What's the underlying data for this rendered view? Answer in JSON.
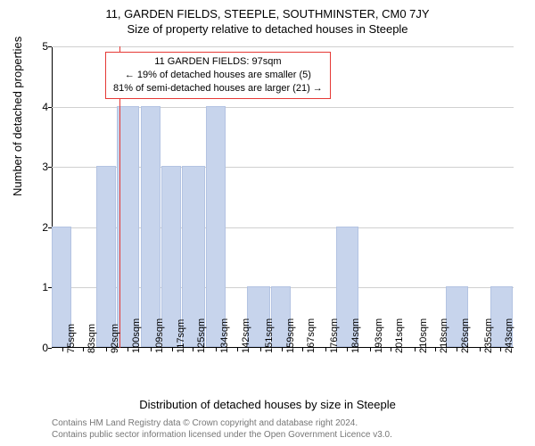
{
  "title_line1": "11, GARDEN FIELDS, STEEPLE, SOUTHMINSTER, CM0 7JY",
  "title_line2": "Size of property relative to detached houses in Steeple",
  "ylabel": "Number of detached properties",
  "xlabel": "Distribution of detached houses by size in Steeple",
  "annotation": {
    "line1": "11 GARDEN FIELDS: 97sqm",
    "line2": "← 19% of detached houses are smaller (5)",
    "line3": "81% of semi-detached houses are larger (21) →"
  },
  "credits": {
    "line1": "Contains HM Land Registry data © Crown copyright and database right 2024.",
    "line2": "Contains public sector information licensed under the Open Government Licence v3.0."
  },
  "chart": {
    "type": "histogram",
    "ylim": [
      0,
      5
    ],
    "ytick_step": 1,
    "background_color": "#ffffff",
    "grid_color": "#d0d0d0",
    "bar_color": "#c7d4ec",
    "bar_border_color": "#b3c3e2",
    "marker_color": "#e53935",
    "marker_x": 97,
    "xmin": 71,
    "xmax": 248,
    "x_ticks": [
      75,
      83,
      92,
      100,
      109,
      117,
      125,
      134,
      142,
      151,
      159,
      167,
      176,
      184,
      193,
      201,
      210,
      218,
      226,
      235,
      243
    ],
    "x_tick_suffix": "sqm",
    "bars": [
      {
        "x0": 71,
        "x1": 79,
        "y": 2
      },
      {
        "x0": 88,
        "x1": 96,
        "y": 3
      },
      {
        "x0": 96,
        "x1": 105,
        "y": 4
      },
      {
        "x0": 105,
        "x1": 113,
        "y": 4
      },
      {
        "x0": 113,
        "x1": 121,
        "y": 3
      },
      {
        "x0": 121,
        "x1": 130,
        "y": 3
      },
      {
        "x0": 130,
        "x1": 138,
        "y": 4
      },
      {
        "x0": 146,
        "x1": 155,
        "y": 1
      },
      {
        "x0": 155,
        "x1": 163,
        "y": 1
      },
      {
        "x0": 180,
        "x1": 189,
        "y": 2
      },
      {
        "x0": 222,
        "x1": 231,
        "y": 1
      },
      {
        "x0": 239,
        "x1": 248,
        "y": 1
      }
    ]
  }
}
